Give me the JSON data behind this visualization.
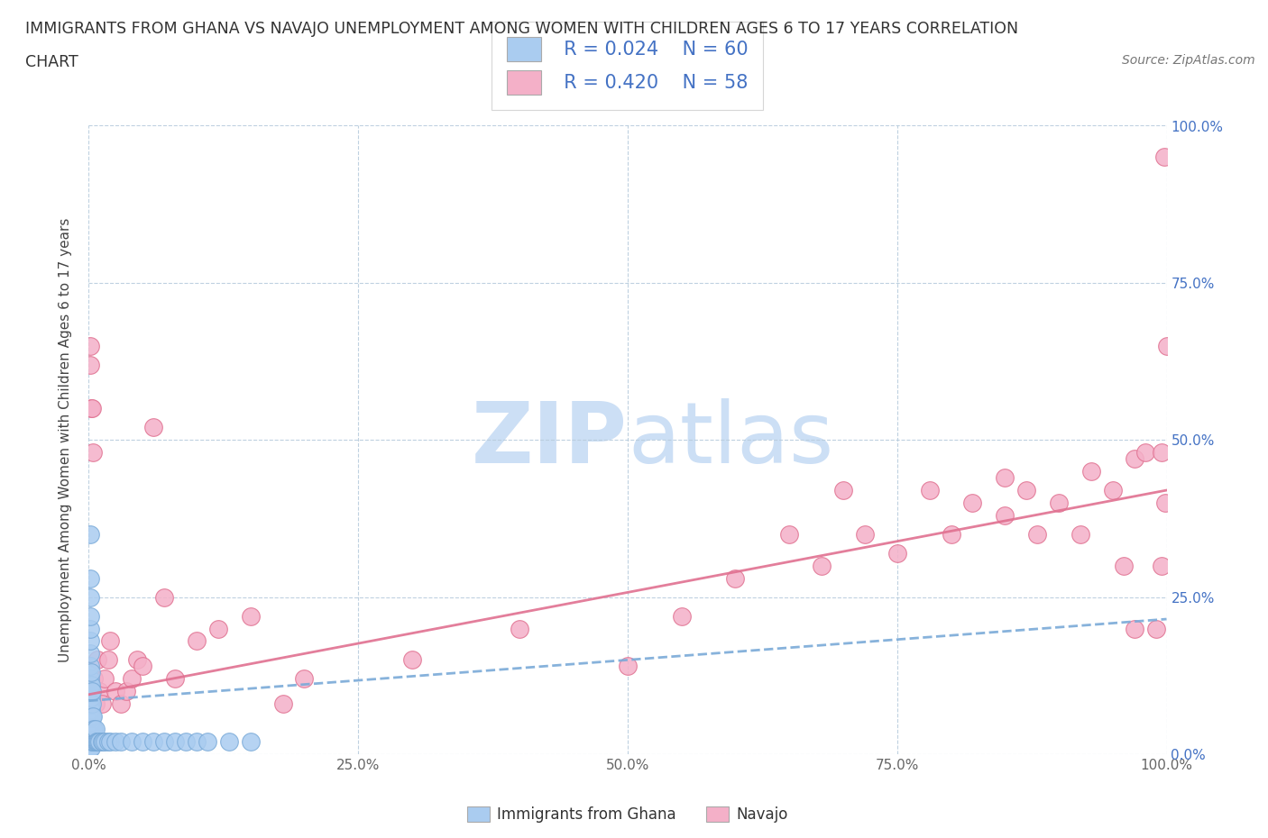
{
  "title_line1": "IMMIGRANTS FROM GHANA VS NAVAJO UNEMPLOYMENT AMONG WOMEN WITH CHILDREN AGES 6 TO 17 YEARS CORRELATION",
  "title_line2": "CHART",
  "source": "Source: ZipAtlas.com",
  "ylabel": "Unemployment Among Women with Children Ages 6 to 17 years",
  "xlabel_blue": "Immigrants from Ghana",
  "xlabel_pink": "Navajo",
  "blue_R": 0.024,
  "blue_N": 60,
  "pink_R": 0.42,
  "pink_N": 58,
  "blue_color": "#aaccf0",
  "blue_edge_color": "#7aaad8",
  "blue_line_color": "#7aaad8",
  "pink_color": "#f4b0c8",
  "pink_edge_color": "#e07090",
  "pink_line_color": "#e07090",
  "blue_scatter_x": [
    0.001,
    0.001,
    0.001,
    0.001,
    0.001,
    0.001,
    0.001,
    0.001,
    0.001,
    0.001,
    0.001,
    0.001,
    0.001,
    0.001,
    0.001,
    0.001,
    0.001,
    0.001,
    0.001,
    0.001,
    0.002,
    0.002,
    0.002,
    0.002,
    0.002,
    0.002,
    0.002,
    0.003,
    0.003,
    0.003,
    0.003,
    0.003,
    0.004,
    0.004,
    0.004,
    0.005,
    0.005,
    0.006,
    0.006,
    0.007,
    0.008,
    0.009,
    0.01,
    0.012,
    0.013,
    0.015,
    0.018,
    0.02,
    0.025,
    0.03,
    0.04,
    0.05,
    0.06,
    0.07,
    0.08,
    0.09,
    0.1,
    0.11,
    0.13,
    0.15
  ],
  "blue_scatter_y": [
    0.01,
    0.02,
    0.03,
    0.04,
    0.05,
    0.06,
    0.07,
    0.08,
    0.09,
    0.1,
    0.11,
    0.12,
    0.14,
    0.16,
    0.18,
    0.2,
    0.22,
    0.25,
    0.28,
    0.35,
    0.01,
    0.03,
    0.05,
    0.07,
    0.09,
    0.11,
    0.13,
    0.02,
    0.04,
    0.06,
    0.08,
    0.1,
    0.02,
    0.04,
    0.06,
    0.02,
    0.04,
    0.02,
    0.04,
    0.02,
    0.02,
    0.02,
    0.02,
    0.02,
    0.02,
    0.02,
    0.02,
    0.02,
    0.02,
    0.02,
    0.02,
    0.02,
    0.02,
    0.02,
    0.02,
    0.02,
    0.02,
    0.02,
    0.02,
    0.02
  ],
  "pink_scatter_x": [
    0.001,
    0.001,
    0.002,
    0.003,
    0.004,
    0.005,
    0.006,
    0.008,
    0.01,
    0.012,
    0.015,
    0.018,
    0.02,
    0.025,
    0.03,
    0.035,
    0.04,
    0.045,
    0.05,
    0.06,
    0.07,
    0.08,
    0.1,
    0.12,
    0.15,
    0.18,
    0.2,
    0.3,
    0.4,
    0.5,
    0.55,
    0.6,
    0.65,
    0.68,
    0.7,
    0.72,
    0.75,
    0.78,
    0.8,
    0.82,
    0.85,
    0.85,
    0.87,
    0.88,
    0.9,
    0.92,
    0.93,
    0.95,
    0.96,
    0.97,
    0.97,
    0.98,
    0.99,
    0.995,
    0.995,
    0.998,
    0.999,
    1.0
  ],
  "pink_scatter_y": [
    0.65,
    0.62,
    0.55,
    0.55,
    0.48,
    0.12,
    0.08,
    0.15,
    0.1,
    0.08,
    0.12,
    0.15,
    0.18,
    0.1,
    0.08,
    0.1,
    0.12,
    0.15,
    0.14,
    0.52,
    0.25,
    0.12,
    0.18,
    0.2,
    0.22,
    0.08,
    0.12,
    0.15,
    0.2,
    0.14,
    0.22,
    0.28,
    0.35,
    0.3,
    0.42,
    0.35,
    0.32,
    0.42,
    0.35,
    0.4,
    0.44,
    0.38,
    0.42,
    0.35,
    0.4,
    0.35,
    0.45,
    0.42,
    0.3,
    0.2,
    0.47,
    0.48,
    0.2,
    0.3,
    0.48,
    0.95,
    0.4,
    0.65
  ],
  "blue_trend_x0": 0.0,
  "blue_trend_y0": 0.085,
  "blue_trend_x1": 1.0,
  "blue_trend_y1": 0.215,
  "pink_trend_x0": 0.0,
  "pink_trend_y0": 0.095,
  "pink_trend_x1": 1.0,
  "pink_trend_y1": 0.42,
  "xlim": [
    0.0,
    1.0
  ],
  "ylim": [
    0.0,
    1.0
  ],
  "watermark_zip": "ZIP",
  "watermark_atlas": "atlas",
  "watermark_color": "#ccdff5",
  "bg_color": "#ffffff",
  "grid_color": "#b8ccdd",
  "xticks": [
    0.0,
    0.25,
    0.5,
    0.75,
    1.0
  ],
  "yticks": [
    0.0,
    0.25,
    0.5,
    0.75,
    1.0
  ],
  "tick_labels_x": [
    "0.0%",
    "25.0%",
    "50.0%",
    "75.0%",
    "100.0%"
  ],
  "right_tick_labels": [
    "0.0%",
    "25.0%",
    "50.0%",
    "75.0%",
    "100.0%"
  ]
}
